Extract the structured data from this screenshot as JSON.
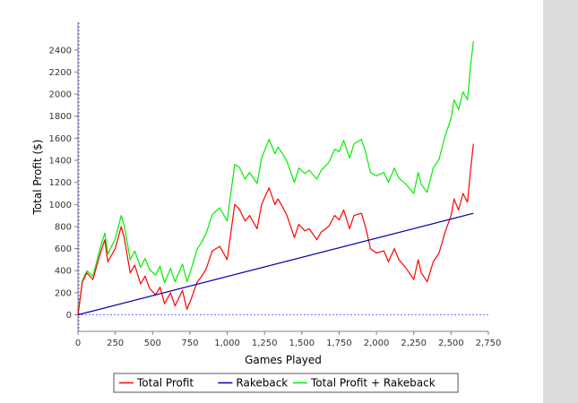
{
  "colors": {
    "background": "#ffffff",
    "side_panel": "#dcdcdc",
    "plot_border": "#808080",
    "zero_line": "#4a4aff",
    "total_profit": "#ff0000",
    "rakeback": "#0000aa",
    "total_profit_plus_rakeback": "#00ee00"
  },
  "chart_data": {
    "type": "line",
    "title": "",
    "xlabel": "Games Played",
    "ylabel": "Total Profit ($)",
    "xlim": [
      0,
      2750
    ],
    "ylim": [
      -150,
      2650
    ],
    "x_ticks": [
      {
        "value": 0,
        "label": "0"
      },
      {
        "value": 250,
        "label": "250"
      },
      {
        "value": 500,
        "label": "500"
      },
      {
        "value": 750,
        "label": "750"
      },
      {
        "value": 1000,
        "label": "1,000"
      },
      {
        "value": 1250,
        "label": "1,250"
      },
      {
        "value": 1500,
        "label": "1,500"
      },
      {
        "value": 1750,
        "label": "1,750"
      },
      {
        "value": 2000,
        "label": "2,000"
      },
      {
        "value": 2250,
        "label": "2,250"
      },
      {
        "value": 2500,
        "label": "2,500"
      },
      {
        "value": 2750,
        "label": "2,750"
      }
    ],
    "y_ticks": [
      {
        "value": 0,
        "label": "0"
      },
      {
        "value": 200,
        "label": "200"
      },
      {
        "value": 400,
        "label": "400"
      },
      {
        "value": 600,
        "label": "600"
      },
      {
        "value": 800,
        "label": "800"
      },
      {
        "value": 1000,
        "label": "1000"
      },
      {
        "value": 1200,
        "label": "1200"
      },
      {
        "value": 1400,
        "label": "1400"
      },
      {
        "value": 1600,
        "label": "1600"
      },
      {
        "value": 1800,
        "label": "1800"
      },
      {
        "value": 2000,
        "label": "2000"
      },
      {
        "value": 2200,
        "label": "2200"
      },
      {
        "value": 2400,
        "label": "2400"
      }
    ],
    "grid": false,
    "legend_position": "bottom",
    "series": [
      {
        "name": "Total Profit",
        "color": "#ff0000",
        "x": [
          0,
          30,
          60,
          100,
          150,
          180,
          200,
          250,
          290,
          310,
          350,
          380,
          420,
          450,
          480,
          520,
          550,
          580,
          620,
          650,
          700,
          730,
          760,
          800,
          830,
          860,
          900,
          950,
          1000,
          1020,
          1050,
          1080,
          1120,
          1150,
          1200,
          1230,
          1280,
          1320,
          1340,
          1370,
          1400,
          1450,
          1480,
          1520,
          1550,
          1600,
          1630,
          1680,
          1720,
          1750,
          1780,
          1820,
          1850,
          1900,
          1930,
          1960,
          2000,
          2050,
          2080,
          2120,
          2150,
          2200,
          2250,
          2280,
          2300,
          2340,
          2380,
          2420,
          2460,
          2500,
          2520,
          2550,
          2580,
          2610,
          2630,
          2650
        ],
        "y": [
          0,
          300,
          380,
          320,
          560,
          680,
          480,
          600,
          800,
          700,
          380,
          450,
          280,
          350,
          240,
          180,
          250,
          100,
          200,
          80,
          220,
          50,
          150,
          300,
          350,
          420,
          580,
          620,
          500,
          700,
          1000,
          960,
          850,
          900,
          780,
          1000,
          1150,
          1000,
          1050,
          980,
          900,
          700,
          820,
          760,
          780,
          680,
          750,
          800,
          900,
          860,
          950,
          780,
          900,
          920,
          780,
          600,
          560,
          580,
          480,
          600,
          500,
          420,
          320,
          500,
          380,
          300,
          480,
          560,
          750,
          900,
          1050,
          950,
          1100,
          1020,
          1300,
          1550
        ]
      },
      {
        "name": "Rakeback",
        "color": "#0000aa",
        "x": [
          0,
          2650
        ],
        "y": [
          0,
          920
        ]
      },
      {
        "name": "Total Profit + Rakeback",
        "color": "#00ee00",
        "x": [
          0,
          30,
          60,
          100,
          150,
          180,
          200,
          250,
          290,
          310,
          350,
          380,
          420,
          450,
          480,
          520,
          550,
          580,
          620,
          650,
          700,
          730,
          760,
          800,
          830,
          860,
          900,
          950,
          1000,
          1020,
          1050,
          1080,
          1120,
          1150,
          1200,
          1230,
          1280,
          1320,
          1340,
          1370,
          1400,
          1450,
          1480,
          1520,
          1550,
          1600,
          1630,
          1680,
          1720,
          1750,
          1780,
          1820,
          1850,
          1900,
          1930,
          1960,
          2000,
          2050,
          2080,
          2120,
          2150,
          2200,
          2250,
          2280,
          2300,
          2340,
          2380,
          2420,
          2460,
          2500,
          2520,
          2550,
          2580,
          2610,
          2630,
          2650
        ],
        "y": [
          0,
          310,
          400,
          350,
          610,
          740,
          550,
          690,
          900,
          810,
          500,
          580,
          430,
          510,
          410,
          360,
          440,
          290,
          420,
          300,
          460,
          300,
          420,
          600,
          660,
          740,
          910,
          970,
          850,
          1060,
          1360,
          1340,
          1230,
          1290,
          1190,
          1420,
          1590,
          1460,
          1520,
          1460,
          1390,
          1200,
          1330,
          1280,
          1310,
          1230,
          1310,
          1380,
          1500,
          1480,
          1580,
          1420,
          1550,
          1590,
          1460,
          1290,
          1260,
          1290,
          1200,
          1330,
          1240,
          1180,
          1100,
          1290,
          1180,
          1110,
          1330,
          1410,
          1620,
          1780,
          1950,
          1860,
          2020,
          1950,
          2250,
          2480
        ]
      }
    ]
  }
}
